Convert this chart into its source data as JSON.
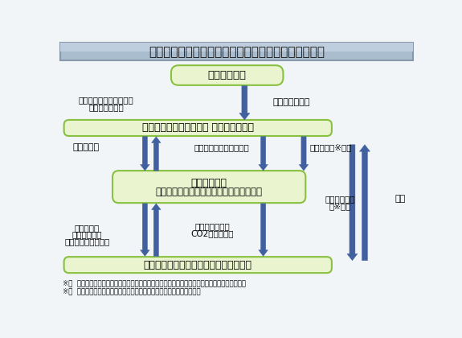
{
  "title": "環境配慮型設備投資促進利子補給金制度のスキーム図",
  "title_bg_top": "#b0c4d8",
  "title_bg_bot": "#8aa8c4",
  "title_border": "#6688aa",
  "bg_color": "#f0f4f8",
  "box_kuni_text": "国（環境省）",
  "box_kikin_text": "基金設置法人（財団法人 日本環境協会）",
  "box_minkan_line1": "民間金融機関",
  "box_minkan_line2": "（日本環境協会による一般公募での選定）",
  "box_taishosya_text": "利子補給対象者（環境配慮型融資企業）",
  "box_light_green_bg": "#eaf5d0",
  "box_light_green_border": "#88c040",
  "label_left1_l1": "金融機関選定基準の提示",
  "label_left1_l2": "等の指導・監督",
  "label_right1": "出資（補助金）",
  "label_left2": "公募・選定",
  "label_center2": "モニタリング結果の報告",
  "label_right2": "利子補給（※１）",
  "label_monitoring_l1": "モニタリング",
  "label_monitoring_l2": "（※２）",
  "label_kaeshi": "返還",
  "label_left3_l1": "環境格付・",
  "label_left3_l2": "環境投資への",
  "label_left3_l3": "貸付・モニタリング",
  "label_center3_l1": "貸入返済金及び",
  "label_center3_l2": "CO2排出量報告",
  "note1": "※１  企業は金融機関に、代理申請・受理その他利子補給金の交付に関する一切の手続きを委任。",
  "note2": "※２  金融機関からのモニタリング結果を検証するとともに、適宜実施。",
  "arrow_color": "#4060a0"
}
